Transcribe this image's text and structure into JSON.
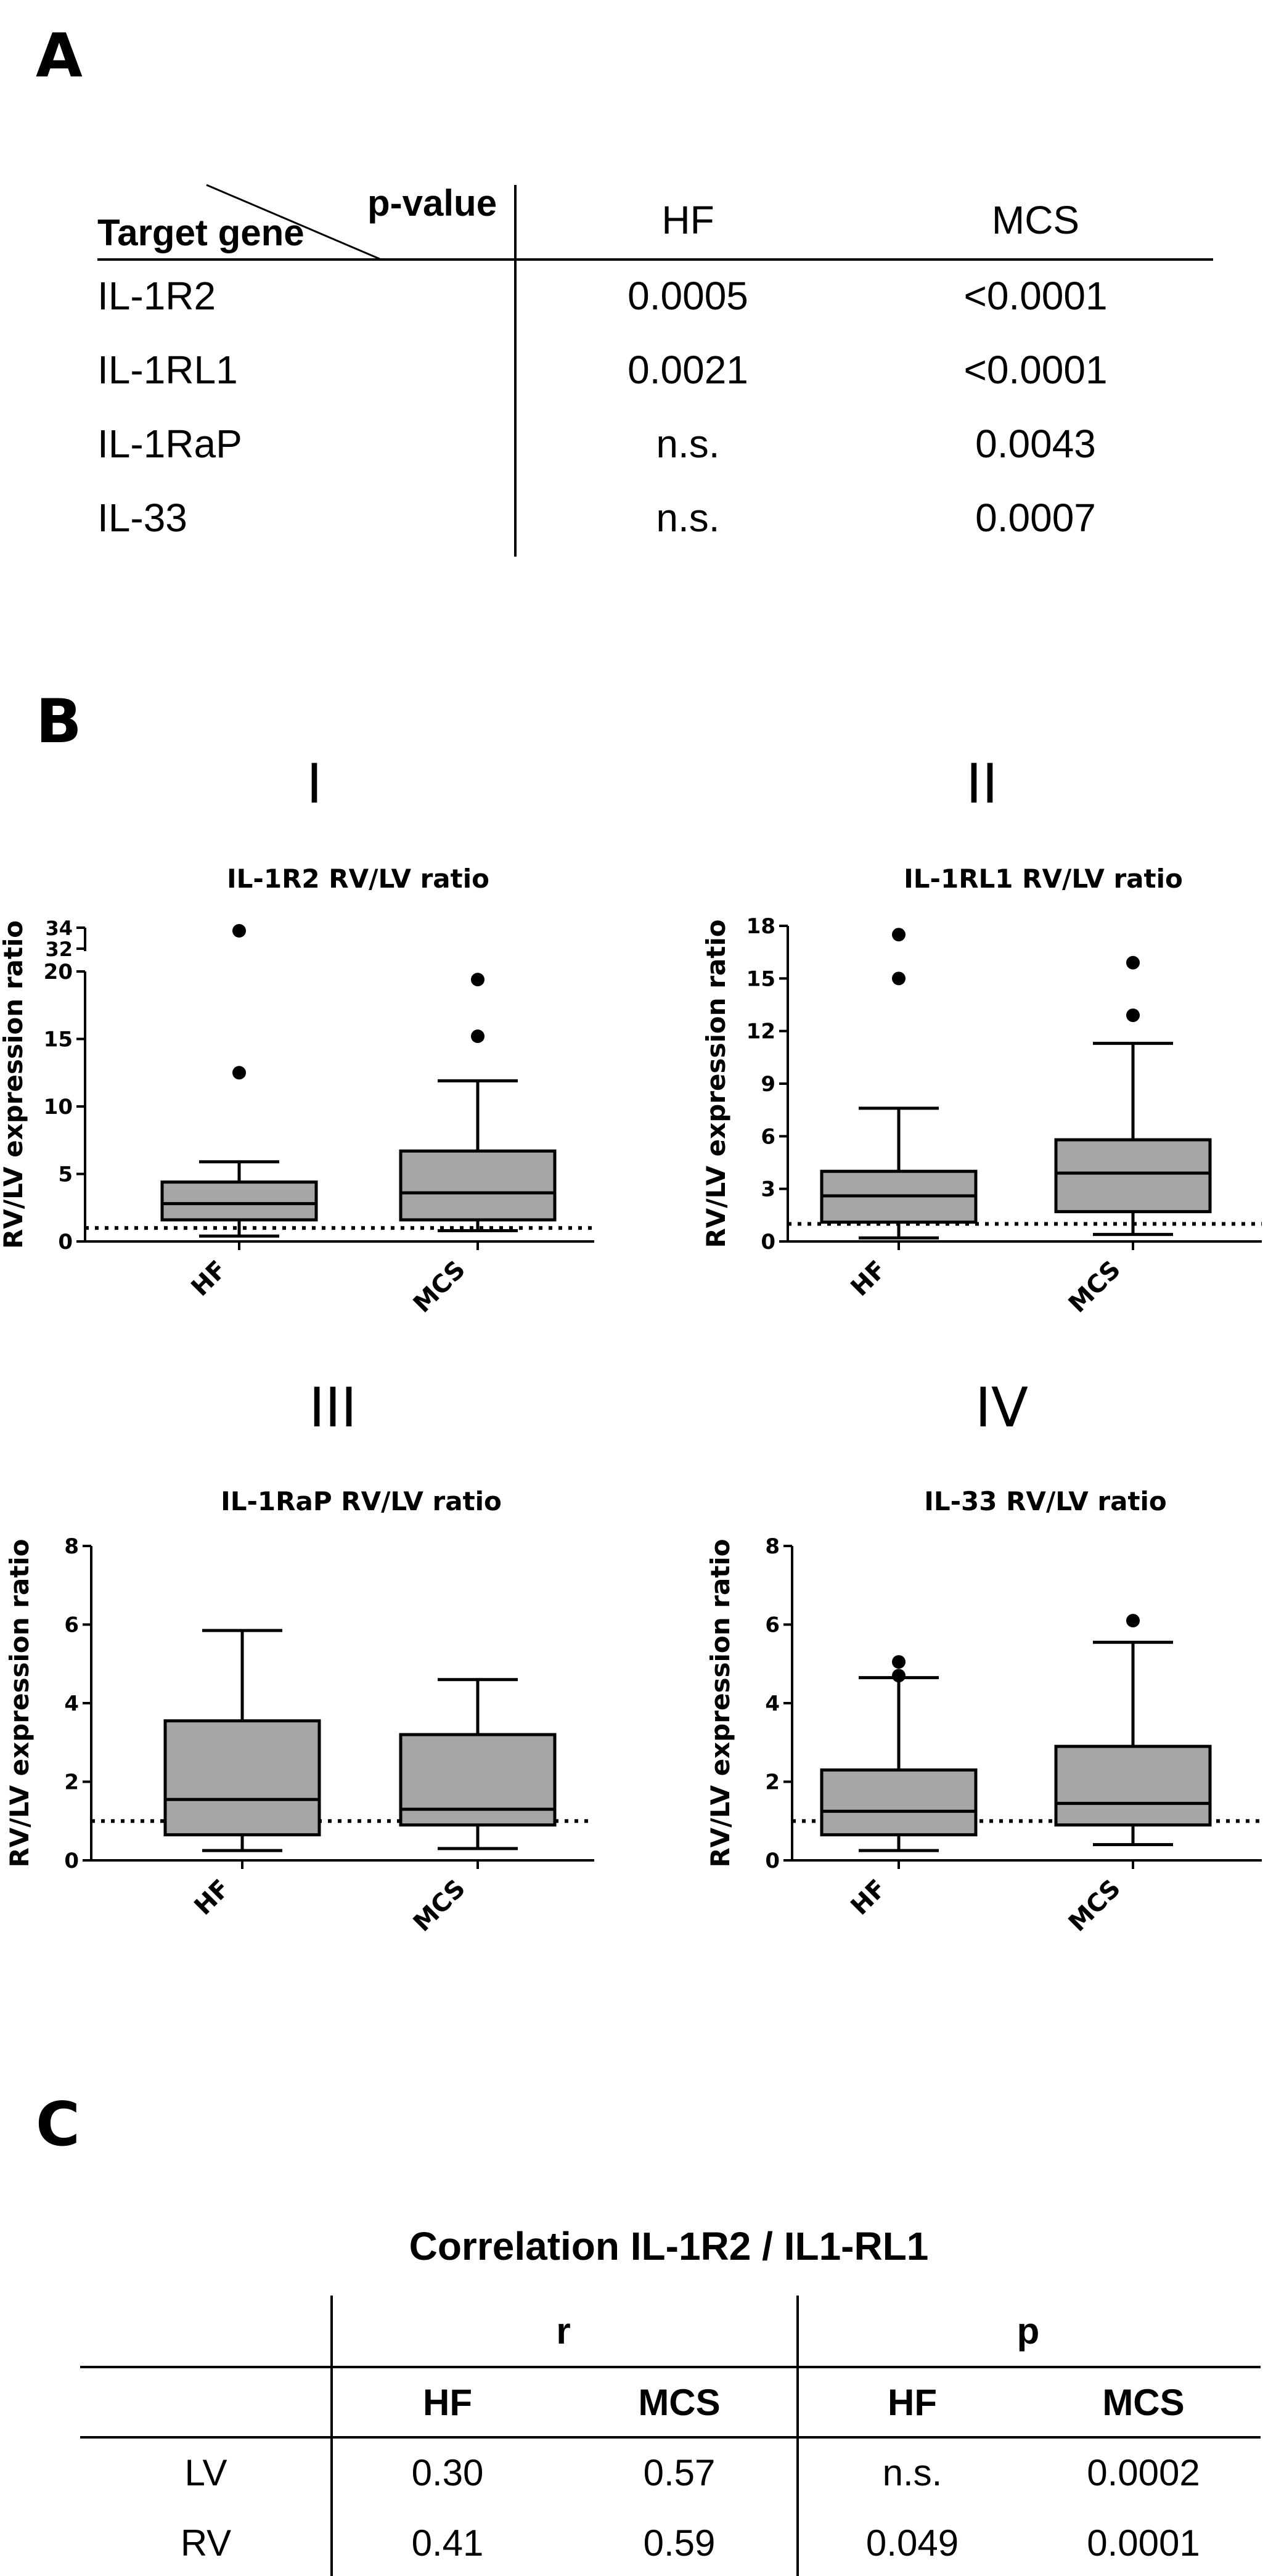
{
  "panel_a": {
    "letter": "A",
    "header": {
      "p_value": "p-value",
      "target_gene": "Target gene",
      "col_hf": "HF",
      "col_mcs": "MCS"
    },
    "rows": [
      {
        "gene": "IL-1R2",
        "hf": "0.0005",
        "mcs": "<0.0001"
      },
      {
        "gene": "IL-1RL1",
        "hf": "0.0021",
        "mcs": "<0.0001"
      },
      {
        "gene": "IL-1RaP",
        "hf": "n.s.",
        "mcs": "0.0043"
      },
      {
        "gene": "IL-33",
        "hf": "n.s.",
        "mcs": "0.0007"
      }
    ]
  },
  "panel_b": {
    "letter": "B",
    "reference_line_value": 1
  },
  "chart_data": [
    {
      "type": "box",
      "panel": "I",
      "title": "IL-1R2 RV/LV ratio",
      "ylabel": "RV/LV expression ratio",
      "categories": [
        "HF",
        "MCS"
      ],
      "ylim": [
        0,
        20
      ],
      "y_ticks": [
        "0",
        "5",
        "10",
        "15",
        "20"
      ],
      "axis_break": {
        "upper_ticks": [
          "32",
          "34"
        ]
      },
      "boxes": [
        {
          "name": "HF",
          "whisker_low": 0.4,
          "q1": 1.6,
          "median": 2.8,
          "q3": 4.4,
          "whisker_high": 5.9,
          "outliers": [
            12.5,
            33.5
          ]
        },
        {
          "name": "MCS",
          "whisker_low": 0.8,
          "q1": 1.6,
          "median": 3.6,
          "q3": 6.7,
          "whisker_high": 11.9,
          "outliers": [
            15.2,
            19.4
          ]
        }
      ]
    },
    {
      "type": "box",
      "panel": "II",
      "title": "IL-1RL1 RV/LV ratio",
      "ylabel": "RV/LV expression ratio",
      "categories": [
        "HF",
        "MCS"
      ],
      "ylim": [
        0,
        18
      ],
      "y_ticks": [
        "0",
        "3",
        "6",
        "9",
        "12",
        "15",
        "18"
      ],
      "boxes": [
        {
          "name": "HF",
          "whisker_low": 0.2,
          "q1": 1.1,
          "median": 2.6,
          "q3": 4.0,
          "whisker_high": 7.6,
          "outliers": [
            15.0,
            17.5
          ]
        },
        {
          "name": "MCS",
          "whisker_low": 0.4,
          "q1": 1.7,
          "median": 3.9,
          "q3": 5.8,
          "whisker_high": 11.3,
          "outliers": [
            12.9,
            15.9
          ]
        }
      ]
    },
    {
      "type": "box",
      "panel": "III",
      "title": "IL-1RaP RV/LV ratio",
      "ylabel": "RV/LV expression ratio",
      "categories": [
        "HF",
        "MCS"
      ],
      "ylim": [
        0,
        8
      ],
      "y_ticks": [
        "0",
        "2",
        "4",
        "6",
        "8"
      ],
      "boxes": [
        {
          "name": "HF",
          "whisker_low": 0.25,
          "q1": 0.65,
          "median": 1.55,
          "q3": 3.55,
          "whisker_high": 5.85,
          "outliers": []
        },
        {
          "name": "MCS",
          "whisker_low": 0.3,
          "q1": 0.9,
          "median": 1.3,
          "q3": 3.2,
          "whisker_high": 4.6,
          "outliers": []
        }
      ]
    },
    {
      "type": "box",
      "panel": "IV",
      "title": "IL-33 RV/LV ratio",
      "ylabel": "RV/LV expression ratio",
      "categories": [
        "HF",
        "MCS"
      ],
      "ylim": [
        0,
        8
      ],
      "y_ticks": [
        "0",
        "2",
        "4",
        "6",
        "8"
      ],
      "boxes": [
        {
          "name": "HF",
          "whisker_low": 0.25,
          "q1": 0.65,
          "median": 1.25,
          "q3": 2.3,
          "whisker_high": 4.65,
          "outliers": [
            4.7,
            5.05
          ]
        },
        {
          "name": "MCS",
          "whisker_low": 0.4,
          "q1": 0.9,
          "median": 1.45,
          "q3": 2.9,
          "whisker_high": 5.55,
          "outliers": [
            6.1
          ]
        }
      ]
    }
  ],
  "panel_c": {
    "letter": "C",
    "title": "Correlation IL-1R2 / IL1-RL1",
    "group_r": "r",
    "group_p": "p",
    "sub_headers": [
      "HF",
      "MCS",
      "HF",
      "MCS"
    ],
    "rows": [
      {
        "label": "LV",
        "r_hf": "0.30",
        "r_mcs": "0.57",
        "p_hf": "n.s.",
        "p_mcs": "0.0002"
      },
      {
        "label": "RV",
        "r_hf": "0.41",
        "r_mcs": "0.59",
        "p_hf": "0.049",
        "p_mcs": "0.0001"
      }
    ]
  }
}
